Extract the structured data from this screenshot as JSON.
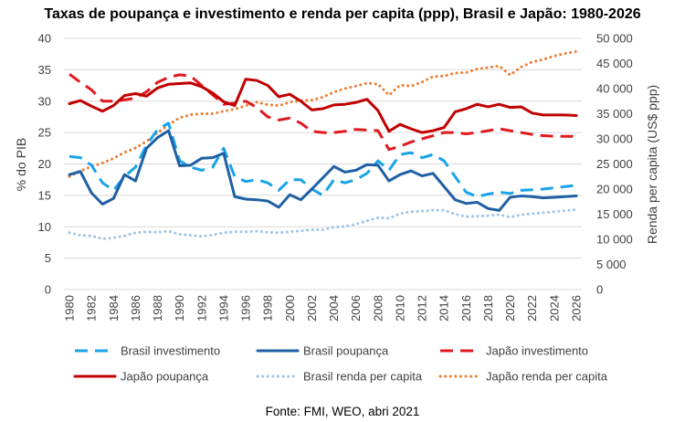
{
  "chart_data": {
    "type": "line",
    "title": "Taxas de poupança e investimento e renda per capita (ppp), Brasil e Japão: 1980-2026",
    "ylabel_left": "% do PIB",
    "ylabel_right": "Renda per capita (US$ ppp)",
    "source": "Fonte: FMI, WEO, abri 2021",
    "ylim_left": [
      0,
      40
    ],
    "ylim_right": [
      0,
      50000
    ],
    "yticks_left": [
      "0",
      "5",
      "10",
      "15",
      "20",
      "25",
      "30",
      "35",
      "40"
    ],
    "yticks_right": [
      "0",
      "5 000",
      "10 000",
      "15 000",
      "20 000",
      "25 000",
      "30 000",
      "35 000",
      "40 000",
      "45 000",
      "50 000"
    ],
    "xtick_labels": [
      "1980",
      "1982",
      "1984",
      "1986",
      "1988",
      "1990",
      "1992",
      "1994",
      "1996",
      "1998",
      "2000",
      "2002",
      "2004",
      "2006",
      "2008",
      "2010",
      "2012",
      "2014",
      "2016",
      "2018",
      "2020",
      "2022",
      "2024",
      "2026"
    ],
    "x": [
      1980,
      1981,
      1982,
      1983,
      1984,
      1985,
      1986,
      1987,
      1988,
      1989,
      1990,
      1991,
      1992,
      1993,
      1994,
      1995,
      1996,
      1997,
      1998,
      1999,
      2000,
      2001,
      2002,
      2003,
      2004,
      2005,
      2006,
      2007,
      2008,
      2009,
      2010,
      2011,
      2012,
      2013,
      2014,
      2015,
      2016,
      2017,
      2018,
      2019,
      2020,
      2021,
      2022,
      2023,
      2024,
      2025,
      2026
    ],
    "grid": true,
    "legend_position": "bottom",
    "series": [
      {
        "name": "Brasil investimento",
        "axis": "left",
        "color": "#1aa3e8",
        "style": "dashed",
        "values": [
          21.2,
          21.0,
          19.8,
          17.0,
          15.8,
          18.0,
          19.5,
          23.0,
          25.5,
          26.5,
          20.5,
          19.5,
          19.0,
          19.5,
          22.5,
          18.0,
          17.2,
          17.5,
          17.0,
          15.8,
          17.5,
          17.5,
          16.0,
          15.0,
          17.5,
          17.0,
          17.5,
          18.5,
          20.5,
          19.0,
          21.5,
          21.8,
          21.0,
          21.5,
          20.5,
          18.0,
          15.5,
          14.8,
          15.2,
          15.5,
          15.3,
          15.8,
          15.9,
          16.0,
          16.2,
          16.4,
          16.6
        ]
      },
      {
        "name": "Brasil poupança",
        "axis": "left",
        "color": "#1f5fa3",
        "style": "solid",
        "values": [
          18.3,
          18.8,
          15.4,
          13.6,
          14.5,
          18.3,
          17.3,
          22.5,
          24.2,
          25.3,
          19.7,
          19.8,
          20.9,
          21.0,
          21.7,
          14.8,
          14.4,
          14.3,
          14.1,
          13.1,
          15.1,
          14.3,
          16.0,
          17.8,
          19.6,
          18.7,
          19.0,
          19.9,
          19.8,
          17.3,
          18.3,
          18.9,
          18.1,
          18.5,
          16.4,
          14.3,
          13.7,
          13.9,
          12.9,
          12.6,
          14.7,
          14.9,
          14.8,
          14.6,
          14.7,
          14.8,
          14.9
        ]
      },
      {
        "name": "Japão investimento",
        "axis": "left",
        "color": "#e0191f",
        "style": "dashed",
        "values": [
          34.3,
          33.0,
          31.8,
          30.0,
          30.0,
          30.2,
          30.5,
          31.5,
          33.0,
          33.8,
          34.2,
          34.0,
          32.5,
          31.0,
          29.5,
          29.7,
          30.0,
          29.0,
          27.5,
          27.0,
          27.3,
          26.5,
          25.2,
          25.0,
          25.0,
          25.2,
          25.5,
          25.4,
          25.3,
          22.3,
          22.8,
          23.5,
          24.0,
          24.5,
          25.0,
          25.0,
          24.8,
          25.0,
          25.3,
          25.6,
          25.3,
          25.0,
          24.7,
          24.5,
          24.4,
          24.4,
          24.4
        ]
      },
      {
        "name": "Japão poupança",
        "axis": "left",
        "color": "#c00000",
        "style": "solid",
        "values": [
          29.6,
          30.1,
          29.2,
          28.4,
          29.3,
          30.9,
          31.2,
          30.8,
          32.1,
          32.7,
          32.8,
          32.9,
          32.3,
          31.3,
          29.9,
          29.3,
          33.5,
          33.3,
          32.5,
          30.7,
          31.1,
          30.0,
          28.6,
          28.8,
          29.4,
          29.5,
          29.8,
          30.3,
          28.5,
          25.2,
          26.3,
          25.6,
          25.0,
          25.3,
          25.8,
          28.3,
          28.8,
          29.5,
          29.1,
          29.5,
          29.0,
          29.1,
          28.1,
          27.8,
          27.8,
          27.8,
          27.7
        ]
      },
      {
        "name": "Brasil renda per capita",
        "axis": "right",
        "color": "#9dc3e6",
        "style": "dotted",
        "values": [
          11300,
          10800,
          10700,
          10100,
          10300,
          10700,
          11300,
          11500,
          11400,
          11600,
          11000,
          10800,
          10600,
          10900,
          11300,
          11500,
          11500,
          11600,
          11400,
          11300,
          11500,
          11700,
          11900,
          11900,
          12400,
          12600,
          13000,
          13700,
          14300,
          14200,
          15100,
          15500,
          15600,
          15800,
          15800,
          15000,
          14500,
          14600,
          14700,
          14900,
          14400,
          14900,
          15100,
          15300,
          15500,
          15700,
          15900
        ]
      },
      {
        "name": "Japão renda per capita",
        "axis": "right",
        "color": "#ed7d31",
        "style": "dotted",
        "values": [
          22500,
          23600,
          24500,
          25200,
          26100,
          27300,
          28200,
          29500,
          31200,
          32800,
          34200,
          34800,
          35000,
          35000,
          35500,
          35900,
          36600,
          37300,
          36800,
          36600,
          37300,
          37600,
          37700,
          38300,
          39300,
          40000,
          40500,
          41100,
          40900,
          38700,
          40700,
          40500,
          41300,
          42400,
          42500,
          43100,
          43200,
          43900,
          44200,
          44500,
          42700,
          44300,
          45300,
          45800,
          46500,
          47000,
          47400
        ]
      }
    ]
  }
}
